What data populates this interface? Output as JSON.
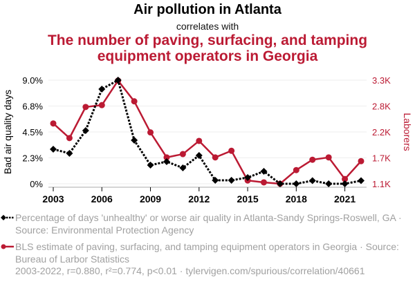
{
  "header": {
    "title": "Air pollution in Atlanta",
    "subtitle": "correlates with",
    "title2": "The number of paving, surfacing, and tamping equipment operators in Georgia"
  },
  "legend": {
    "series1": "Percentage of days 'unhealthy' or worse air quality in Atlanta-Sandy Springs-Roswell, GA · Source: Environmental Protection Agency",
    "series2": "BLS estimate of paving, surfacing, and tamping equipment operators in Georgia · Source: Bureau of Larbor Statistics"
  },
  "footer": "2003-2022, r=0.880, r²=0.774, p<0.01 · tylervigen.com/spurious/correlation/40661",
  "colors": {
    "series1": "#000000",
    "series2": "#bb1a33",
    "grid": "#eeeeee",
    "axis": "#aaaaaa",
    "legend_text": "#a0a0a0"
  },
  "chart_data": {
    "type": "line",
    "title": "Air pollution in Atlanta",
    "x": [
      2003,
      2004,
      2005,
      2006,
      2007,
      2008,
      2009,
      2010,
      2011,
      2012,
      2013,
      2014,
      2015,
      2016,
      2017,
      2018,
      2019,
      2020,
      2021,
      2022
    ],
    "xticks": [
      2003,
      2006,
      2009,
      2012,
      2015,
      2018,
      2021
    ],
    "xtick_labels": [
      "2003",
      "2006",
      "2009",
      "2012",
      "2015",
      "2018",
      "2021"
    ],
    "series": [
      {
        "name": "Percentage of days 'unhealthy' or worse air quality in Atlanta-Sandy Springs-Roswell, GA",
        "axis": "left",
        "style": "dotted",
        "marker": "diamond",
        "values": [
          3.0,
          2.64,
          4.62,
          8.22,
          9.0,
          3.78,
          1.62,
          1.92,
          1.38,
          2.46,
          0.3,
          0.3,
          0.54,
          1.08,
          0.0,
          0.0,
          0.27,
          0.0,
          0.0,
          0.27
        ]
      },
      {
        "name": "BLS estimate of paving, surfacing, and tamping equipment operators in Georgia",
        "axis": "right",
        "style": "solid",
        "marker": "circle",
        "values": [
          2380,
          2070,
          2730,
          2770,
          3290,
          2850,
          2190,
          1660,
          1730,
          2010,
          1660,
          1800,
          1170,
          1130,
          1100,
          1390,
          1610,
          1660,
          1200,
          1580
        ]
      }
    ],
    "y_left": {
      "label": "Bad air quality days",
      "lim": [
        0,
        9.0
      ],
      "ticks": [
        0,
        2.25,
        4.5,
        6.75,
        9.0
      ],
      "tick_labels": [
        "0%",
        "2.3%",
        "4.5%",
        "6.8%",
        "9.0%"
      ]
    },
    "y_right": {
      "label": "Laborers",
      "lim": [
        1100,
        3300
      ],
      "ticks": [
        1100,
        1650,
        2200,
        2750,
        3300
      ],
      "tick_labels": [
        "1.1K",
        "1.7K",
        "2.2K",
        "2.8K",
        "3.3K"
      ]
    },
    "grid": true,
    "legend_position": "bottom"
  }
}
